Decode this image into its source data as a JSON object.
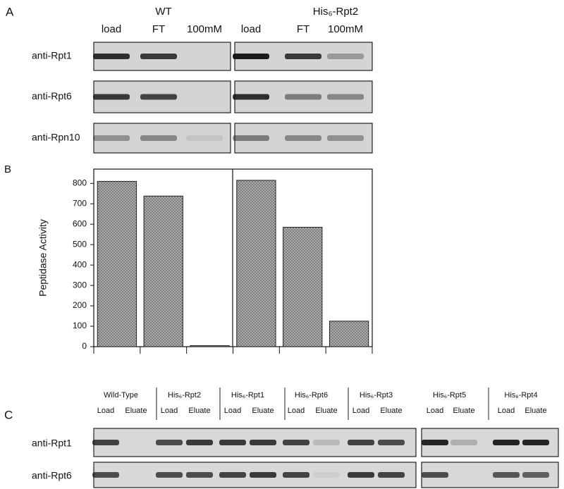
{
  "panel_a": {
    "label": "A",
    "groups": [
      {
        "name": "WT",
        "lanes": [
          "load",
          "FT",
          "100mM"
        ]
      },
      {
        "name": "His₆-Rpt2",
        "lanes": [
          "load",
          "FT",
          "100mM"
        ]
      }
    ],
    "rows": [
      "anti-Rpt1",
      "anti-Rpt6",
      "anti-Rpn10"
    ]
  },
  "panel_b": {
    "label": "B"
  },
  "chart_data": {
    "type": "bar",
    "y_label": "Peptidase Activity",
    "values": [
      810,
      738,
      5,
      815,
      585,
      125
    ],
    "color": "#9a9a9a",
    "ylim": [
      0,
      870
    ],
    "yticks": [
      0,
      100,
      200,
      300,
      400,
      500,
      600,
      700,
      800
    ]
  },
  "panel_c": {
    "label": "C",
    "groups": [
      {
        "name": "Wild-Type",
        "lanes": [
          "Load",
          "Eluate"
        ]
      },
      {
        "name": "His₆-Rpt2",
        "lanes": [
          "Load",
          "Eluate"
        ]
      },
      {
        "name": "His₆-Rpt1",
        "lanes": [
          "Load",
          "Eluate"
        ]
      },
      {
        "name": "His₆-Rpt6",
        "lanes": [
          "Load",
          "Eluate"
        ]
      },
      {
        "name": "His₆-Rpt3",
        "lanes": [
          "Load",
          "Eluate"
        ]
      },
      {
        "name": "His₆-Rpt5",
        "lanes": [
          "Load",
          "Eluate"
        ]
      },
      {
        "name": "His₆-Rpt4",
        "lanes": [
          "Load",
          "Eluate"
        ]
      }
    ],
    "rows": [
      "anti-Rpt1",
      "anti-Rpt6"
    ]
  }
}
